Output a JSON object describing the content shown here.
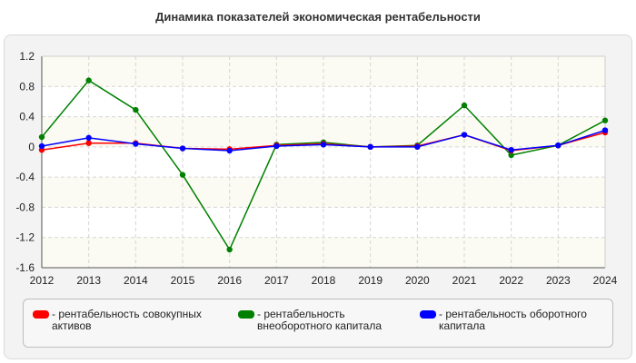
{
  "chart_data": {
    "type": "line",
    "title": "Динамика показателей экономическая рентабельности",
    "xlabel": "",
    "ylabel": "",
    "categories": [
      "2012",
      "2013",
      "2014",
      "2015",
      "2016",
      "2017",
      "2018",
      "2019",
      "2020",
      "2021",
      "2022",
      "2023",
      "2024"
    ],
    "ylim": [
      -1.6,
      1.2
    ],
    "yticks": [
      "1.2",
      "0.8",
      "0.4",
      "0",
      "-0.4",
      "-0.8",
      "-1.2",
      "-1.6"
    ],
    "grid": true,
    "legend_position": "bottom",
    "series": [
      {
        "name": "рентабельность совокупных активов",
        "color": "#ff0000",
        "values": [
          -0.04,
          0.05,
          0.05,
          -0.02,
          -0.03,
          0.02,
          0.04,
          0.0,
          0.01,
          0.16,
          -0.05,
          0.02,
          0.19
        ]
      },
      {
        "name": "рентабельность внеоборотного капитала",
        "color": "#008000",
        "values": [
          0.13,
          0.88,
          0.49,
          -0.37,
          -1.36,
          0.03,
          0.06,
          0.0,
          0.02,
          0.55,
          -0.11,
          0.02,
          0.35
        ]
      },
      {
        "name": "рентабельность оборотного капитала",
        "color": "#0000ff",
        "values": [
          0.01,
          0.12,
          0.04,
          -0.02,
          -0.05,
          0.01,
          0.03,
          0.0,
          0.0,
          0.16,
          -0.04,
          0.02,
          0.22
        ]
      }
    ]
  },
  "legend": {
    "items": [
      {
        "label": "- рентабельность совокупных активов",
        "color": "#ff0000"
      },
      {
        "label": "- рентабельность внеоборотного капитала",
        "color": "#008000"
      },
      {
        "label": "- рентабельность оборотного капитала",
        "color": "#0000ff"
      }
    ]
  }
}
